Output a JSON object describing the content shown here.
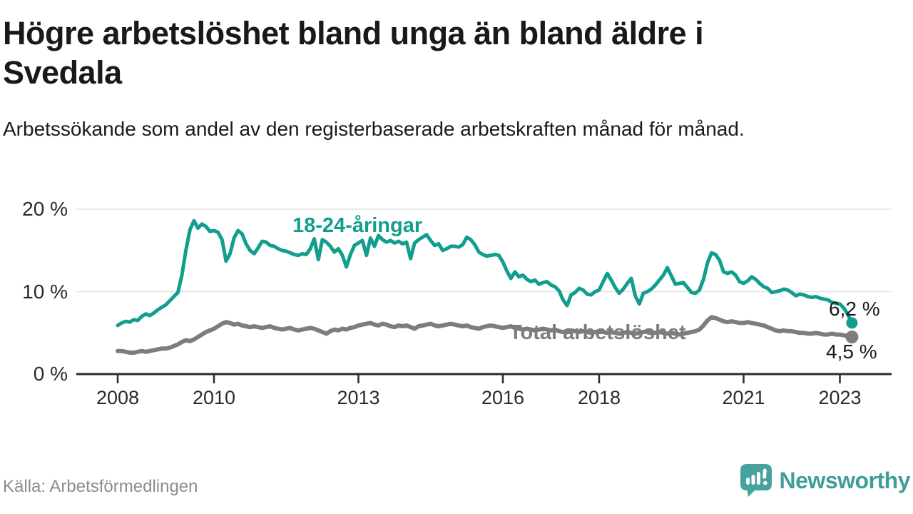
{
  "chart_data": {
    "type": "line",
    "title": "Högre arbetslöshet bland unga än bland äldre i Svedala",
    "subtitle": "Arbetssökande som andel av den registerbaserade arbetskraften månad för månad.",
    "source": "Källa: Arbetsförmedlingen",
    "x_unit": "month",
    "x_start": "2008-01",
    "x_end": "2023-04",
    "x_ticks": [
      "2008",
      "2010",
      "2013",
      "2016",
      "2018",
      "2021",
      "2023"
    ],
    "y_ticks": [
      {
        "value": 0,
        "label": "0 %"
      },
      {
        "value": 10,
        "label": "10 %"
      },
      {
        "value": 20,
        "label": "20 %"
      }
    ],
    "ylim": [
      0,
      20
    ],
    "grid": "horizontal-only",
    "legend_position": "inline-labels",
    "series": [
      {
        "name": "18-24-åringar",
        "color": "#119e8d",
        "end_label": "6,2 %",
        "end_value": 6.2,
        "values": [
          5.9,
          6.2,
          6.4,
          6.3,
          6.6,
          6.5,
          7.0,
          7.3,
          7.1,
          7.4,
          7.8,
          8.1,
          8.4,
          8.9,
          9.4,
          9.9,
          12.0,
          15.0,
          17.5,
          18.6,
          17.7,
          18.2,
          17.9,
          17.3,
          17.4,
          17.2,
          16.3,
          13.7,
          14.6,
          16.5,
          17.4,
          17.0,
          15.8,
          15.0,
          14.6,
          15.3,
          16.1,
          16.0,
          15.6,
          15.5,
          15.2,
          15.0,
          14.9,
          14.7,
          14.5,
          14.4,
          14.6,
          14.5,
          15.2,
          16.4,
          13.9,
          16.3,
          16.0,
          15.5,
          14.8,
          15.2,
          14.4,
          13.0,
          14.5,
          15.6,
          15.9,
          16.2,
          14.4,
          16.5,
          15.5,
          16.8,
          16.3,
          16.0,
          16.2,
          15.9,
          16.1,
          15.8,
          16.0,
          14.0,
          15.9,
          16.3,
          16.6,
          16.9,
          16.2,
          15.6,
          15.8,
          15.0,
          15.2,
          15.5,
          15.5,
          15.4,
          15.7,
          16.6,
          16.3,
          15.7,
          14.8,
          14.5,
          14.3,
          14.4,
          14.5,
          14.4,
          13.6,
          12.5,
          11.6,
          12.4,
          11.8,
          12.0,
          11.5,
          11.2,
          11.4,
          10.9,
          11.1,
          11.2,
          10.8,
          10.6,
          10.1,
          9.0,
          8.3,
          9.6,
          9.9,
          10.4,
          10.2,
          9.7,
          9.6,
          10.0,
          10.2,
          11.2,
          12.2,
          11.4,
          10.5,
          9.8,
          10.3,
          11.0,
          11.6,
          9.5,
          8.5,
          9.8,
          10.0,
          10.3,
          10.8,
          11.4,
          12.0,
          12.9,
          11.9,
          10.9,
          11.0,
          11.1,
          10.5,
          9.9,
          9.8,
          10.2,
          11.5,
          13.5,
          14.7,
          14.5,
          13.8,
          12.4,
          12.2,
          12.4,
          12.0,
          11.2,
          11.0,
          11.3,
          11.8,
          11.5,
          11.0,
          10.6,
          10.4,
          9.9,
          10.0,
          10.1,
          10.3,
          10.2,
          9.9,
          9.5,
          9.7,
          9.6,
          9.4,
          9.3,
          9.4,
          9.2,
          9.1,
          9.0,
          8.7,
          8.6,
          8.5,
          8.0,
          7.2,
          6.2
        ]
      },
      {
        "name": "Total arbetslöshet",
        "color": "#7d7d7d",
        "end_label": "4,5 %",
        "end_value": 4.5,
        "values": [
          2.8,
          2.8,
          2.7,
          2.6,
          2.6,
          2.7,
          2.8,
          2.7,
          2.8,
          2.9,
          3.0,
          3.1,
          3.1,
          3.2,
          3.4,
          3.6,
          3.9,
          4.1,
          4.0,
          4.2,
          4.5,
          4.8,
          5.1,
          5.3,
          5.5,
          5.8,
          6.1,
          6.3,
          6.2,
          6.0,
          6.1,
          5.9,
          5.8,
          5.7,
          5.8,
          5.7,
          5.6,
          5.7,
          5.8,
          5.6,
          5.5,
          5.4,
          5.5,
          5.6,
          5.4,
          5.3,
          5.4,
          5.5,
          5.6,
          5.5,
          5.3,
          5.1,
          4.9,
          5.2,
          5.4,
          5.3,
          5.5,
          5.4,
          5.6,
          5.7,
          5.9,
          6.0,
          6.1,
          6.2,
          6.0,
          5.9,
          6.1,
          6.0,
          5.8,
          5.7,
          5.9,
          5.8,
          5.9,
          5.7,
          5.5,
          5.8,
          5.9,
          6.0,
          6.1,
          5.9,
          5.8,
          5.9,
          6.0,
          6.1,
          6.0,
          5.9,
          5.8,
          5.9,
          5.7,
          5.6,
          5.5,
          5.7,
          5.8,
          5.9,
          5.8,
          5.7,
          5.6,
          5.7,
          5.8,
          5.6,
          5.5,
          5.4,
          5.5,
          5.4,
          5.3,
          5.4,
          5.5,
          5.4,
          5.3,
          5.4,
          5.2,
          5.1,
          5.2,
          5.3,
          5.2,
          5.1,
          5.2,
          5.1,
          5.0,
          5.1,
          5.2,
          5.1,
          5.0,
          5.1,
          5.0,
          4.9,
          5.0,
          5.1,
          5.0,
          4.9,
          5.0,
          5.1,
          5.2,
          5.1,
          5.0,
          5.1,
          5.0,
          4.9,
          5.0,
          4.9,
          4.8,
          4.9,
          5.0,
          5.1,
          5.2,
          5.4,
          5.9,
          6.5,
          6.9,
          6.8,
          6.6,
          6.4,
          6.3,
          6.4,
          6.3,
          6.2,
          6.2,
          6.3,
          6.2,
          6.1,
          6.0,
          5.9,
          5.7,
          5.5,
          5.3,
          5.2,
          5.3,
          5.2,
          5.2,
          5.1,
          5.0,
          5.0,
          4.9,
          4.9,
          5.0,
          4.9,
          4.8,
          4.8,
          4.9,
          4.8,
          4.8,
          4.7,
          4.6,
          4.5
        ]
      }
    ]
  },
  "footer": {
    "source": "Källa: Arbetsförmedlingen",
    "brand": "Newsworthy"
  },
  "colors": {
    "youth_line": "#119e8d",
    "total_line": "#7d7d7d",
    "grid": "#e2e2e2",
    "axis": "#2b2b2b",
    "title_text": "#191919",
    "muted_text": "#8c8c8c",
    "brand_teal": "#47a29d"
  }
}
